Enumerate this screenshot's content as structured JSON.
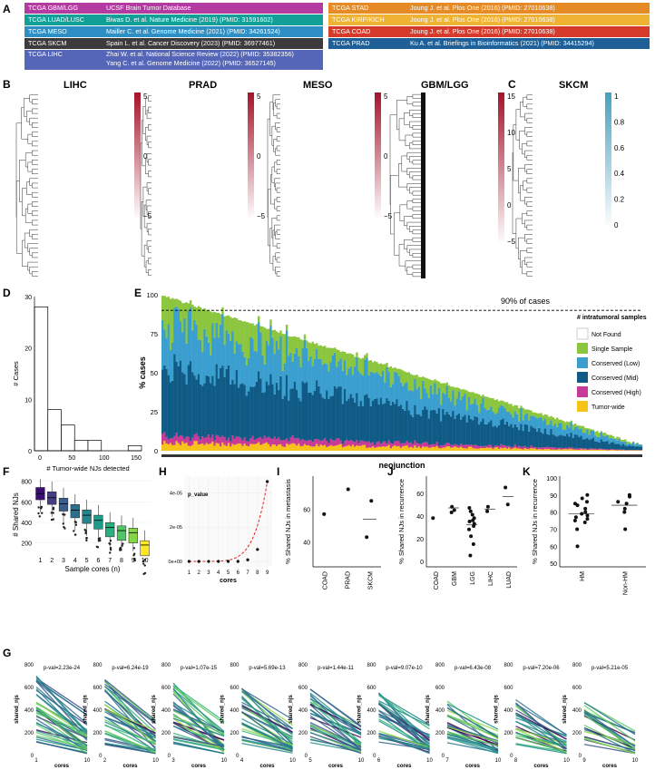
{
  "panel_labels": [
    "A",
    "B",
    "C",
    "D",
    "E",
    "F",
    "G",
    "H",
    "I",
    "J",
    "K"
  ],
  "table_left": [
    {
      "cohort": "TCGA GBM/LGG",
      "source": "UCSF Brain Tumor Database",
      "color": "#b23aa0"
    },
    {
      "cohort": "TCGA LUAD/LUSC",
      "source": "Biwas D. et al. Nature Medicine (2019) (PMID: 31591602)",
      "color": "#119f97"
    },
    {
      "cohort": "TCGA MESO",
      "source": "Mailler C. et al. Genome Medicine (2021) (PMID: 34261524)",
      "color": "#2e8fc4"
    },
    {
      "cohort": "TCGA SKCM",
      "source": "Spain L. et al. Cancer Discovery (2023) (PMID: 36977461)",
      "color": "#3b3b3b"
    },
    {
      "cohort": "TCGA LIHC",
      "source": "Zhai W. et al. National Science Review (2022) (PMID: 35382356)",
      "source2": "Yang C. et al. Genome Medicine (2022) (PMID: 36527145)",
      "color": "#5566b8"
    }
  ],
  "table_right": [
    {
      "cohort": "TCGA STAD",
      "source": "Joung J. et al. Plos One (2016) (PMID: 27010638)",
      "color": "#e58a24"
    },
    {
      "cohort": "TCGA KIRP/KICH",
      "source": "Joung J. et al. Plos One (2016) (PMID: 27010638)",
      "color": "#f0b232"
    },
    {
      "cohort": "TCGA COAD",
      "source": "Joung J. et al. Plos One (2016) (PMID: 27010638)",
      "color": "#d63a2a"
    },
    {
      "cohort": "TCGA PRAD",
      "source": "Ku A. et al. Briefings in Bioinformatics (2021) (PMID: 34415294)",
      "color": "#1e5f97"
    }
  ],
  "heatmaps": [
    {
      "title": "LIHC",
      "ticks": [
        "5",
        "0",
        "−5"
      ]
    },
    {
      "title": "PRAD",
      "ticks": [
        "5",
        "0",
        "−5"
      ]
    },
    {
      "title": "MESO",
      "ticks": [
        "5",
        "0",
        "−5"
      ]
    },
    {
      "title": "GBM/LGG",
      "ticks": [
        "15",
        "10",
        "5",
        "0",
        "−5"
      ]
    }
  ],
  "skcm": {
    "title": "SKCM",
    "ticks": [
      "1",
      "0.8",
      "0.6",
      "0.4",
      "0.2",
      "0"
    ]
  },
  "panel_D": {
    "ylabel": "# Cases",
    "xlabel": "# Tumor-wide NJs detected",
    "xticks": [
      "0",
      "50",
      "100",
      "150"
    ],
    "yticks": [
      "0",
      "10",
      "20",
      "30"
    ]
  },
  "panel_E": {
    "ylabel": "% cases",
    "xlabel": "neojunction",
    "annotation": "90% of cases",
    "yticks": [
      "0",
      "25",
      "50",
      "75",
      "100"
    ],
    "legend_title": "# intratumoral samples",
    "legend": [
      {
        "label": "Not Found",
        "color": "#ffffff"
      },
      {
        "label": "Single Sample",
        "color": "#8cc63e"
      },
      {
        "label": "Conserved (Low)",
        "color": "#3a9ecf"
      },
      {
        "label": "Conserved (Mid)",
        "color": "#0f5b86"
      },
      {
        "label": "Conserved (High)",
        "color": "#c73a96"
      },
      {
        "label": "Tumor-wide",
        "color": "#f7c318"
      }
    ]
  },
  "panel_F": {
    "ylabel": "# Shared NJs",
    "xlabel": "Sample cores (n)",
    "yticks": [
      "200",
      "400",
      "600",
      "800"
    ],
    "xticks": [
      "1",
      "2",
      "3",
      "4",
      "5",
      "6",
      "7",
      "8",
      "9",
      "10"
    ]
  },
  "panel_H": {
    "ylabel": "p_value",
    "xlabel": "cores",
    "yticks": [
      "0e+00",
      "2e-05",
      "4e-05"
    ],
    "xticks": [
      "1",
      "2",
      "3",
      "4",
      "5",
      "6",
      "7",
      "8",
      "9"
    ]
  },
  "panel_I": {
    "ylabel": "% Shared NJs in metastasis",
    "yticks": [
      "40",
      "60"
    ],
    "cats": [
      "COAD",
      "PRAD",
      "SKCM"
    ]
  },
  "panel_J": {
    "ylabel": "% Shared NJs in recurrence",
    "yticks": [
      "0",
      "20",
      "40",
      "60"
    ],
    "cats": [
      "COAD",
      "GBM",
      "LGG",
      "LIHC",
      "LUAD"
    ]
  },
  "panel_K": {
    "ylabel": "% Shared NJs in recurrence",
    "yticks": [
      "50",
      "60",
      "70",
      "80",
      "90",
      "100"
    ],
    "cats": [
      "HM",
      "Non-HM"
    ]
  },
  "panel_G": {
    "ylabel": "shared_njs",
    "xlabel": "cores",
    "yticks": [
      "0",
      "200",
      "400",
      "600",
      "800"
    ],
    "plots": [
      {
        "pval": "p-val=2.23e-24",
        "x0": "1",
        "x1": "10"
      },
      {
        "pval": "p-val=6.24e-19",
        "x0": "2",
        "x1": "10"
      },
      {
        "pval": "p-val=1.07e-15",
        "x0": "3",
        "x1": "10"
      },
      {
        "pval": "p-val=5.69e-13",
        "x0": "4",
        "x1": "10"
      },
      {
        "pval": "p-val=1.44e-11",
        "x0": "5",
        "x1": "10"
      },
      {
        "pval": "p-val=9.07e-10",
        "x0": "6",
        "x1": "10"
      },
      {
        "pval": "p-val=6.43e-08",
        "x0": "7",
        "x1": "10"
      },
      {
        "pval": "p-val=7.20e-06",
        "x0": "8",
        "x1": "10"
      },
      {
        "pval": "p-val=5.21e-05",
        "x0": "9",
        "x1": "10"
      }
    ]
  }
}
